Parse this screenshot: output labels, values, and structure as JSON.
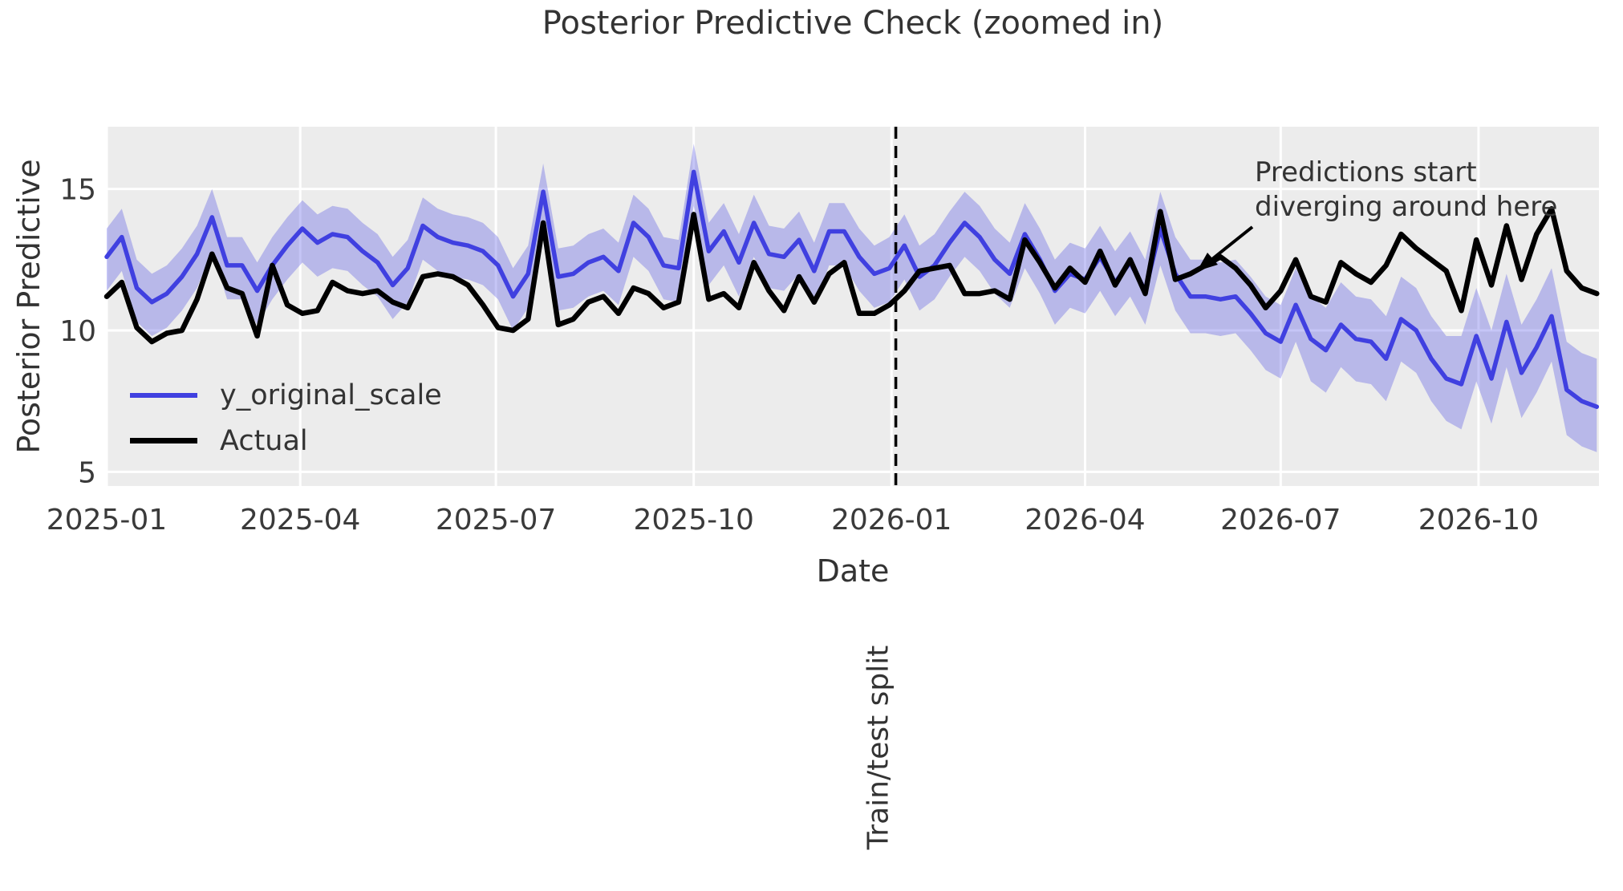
{
  "chart_data": {
    "type": "line",
    "title": "Posterior Predictive Check (zoomed in)",
    "xlabel": "Date",
    "ylabel": "Posterior Predictive",
    "grid": true,
    "plot_bg": "#ececec",
    "grid_color": "#ffffff",
    "text_color": "#3a3a3a",
    "line_color_pred": "#4040e0",
    "line_color_actual": "#000000",
    "band_color": "rgba(64,64,224,0.30)",
    "legend_position": "left-middle",
    "legend": [
      {
        "label": "y_original_scale",
        "color": "#4040e0"
      },
      {
        "label": "Actual",
        "color": "#000000"
      }
    ],
    "ylim": [
      4.5,
      17.2
    ],
    "xlim": [
      "2025-01-01",
      "2026-11-26"
    ],
    "y_ticks": [
      {
        "value": 15,
        "label": "15"
      },
      {
        "value": 10,
        "label": "10"
      },
      {
        "value": 5,
        "label": "5"
      }
    ],
    "x_ticks": [
      {
        "date": "2025-01-01",
        "label": "2025-01"
      },
      {
        "date": "2025-04-01",
        "label": "2025-04"
      },
      {
        "date": "2025-07-01",
        "label": "2025-07"
      },
      {
        "date": "2025-10-01",
        "label": "2025-10"
      },
      {
        "date": "2026-01-01",
        "label": "2026-01"
      },
      {
        "date": "2026-04-01",
        "label": "2026-04"
      },
      {
        "date": "2026-07-01",
        "label": "2026-07"
      },
      {
        "date": "2026-10-01",
        "label": "2026-10"
      }
    ],
    "split": {
      "date": "2026-01-03",
      "label": "Train/test split",
      "line_style": "dashed",
      "line_color": "#000000"
    },
    "annotation": {
      "line1": "Predictions start",
      "line2": "diverging around here",
      "arrow_color": "#000000"
    },
    "series": {
      "dates": [
        "2025-01-01",
        "2025-01-08",
        "2025-01-15",
        "2025-01-22",
        "2025-01-29",
        "2025-02-05",
        "2025-02-12",
        "2025-02-19",
        "2025-02-26",
        "2025-03-05",
        "2025-03-12",
        "2025-03-19",
        "2025-03-26",
        "2025-04-02",
        "2025-04-09",
        "2025-04-16",
        "2025-04-23",
        "2025-04-30",
        "2025-05-07",
        "2025-05-14",
        "2025-05-21",
        "2025-05-28",
        "2025-06-04",
        "2025-06-11",
        "2025-06-18",
        "2025-06-25",
        "2025-07-02",
        "2025-07-09",
        "2025-07-16",
        "2025-07-23",
        "2025-07-30",
        "2025-08-06",
        "2025-08-13",
        "2025-08-20",
        "2025-08-27",
        "2025-09-03",
        "2025-09-10",
        "2025-09-17",
        "2025-09-24",
        "2025-10-01",
        "2025-10-08",
        "2025-10-15",
        "2025-10-22",
        "2025-10-29",
        "2025-11-05",
        "2025-11-12",
        "2025-11-19",
        "2025-11-26",
        "2025-12-03",
        "2025-12-10",
        "2025-12-17",
        "2025-12-24",
        "2025-12-31",
        "2026-01-07",
        "2026-01-14",
        "2026-01-21",
        "2026-01-28",
        "2026-02-04",
        "2026-02-11",
        "2026-02-18",
        "2026-02-25",
        "2026-03-04",
        "2026-03-11",
        "2026-03-18",
        "2026-03-25",
        "2026-04-01",
        "2026-04-08",
        "2026-04-15",
        "2026-04-22",
        "2026-04-29",
        "2026-05-06",
        "2026-05-13",
        "2026-05-20",
        "2026-05-27",
        "2026-06-03",
        "2026-06-10",
        "2026-06-17",
        "2026-06-24",
        "2026-07-01",
        "2026-07-08",
        "2026-07-15",
        "2026-07-22",
        "2026-07-29",
        "2026-08-05",
        "2026-08-12",
        "2026-08-19",
        "2026-08-26",
        "2026-09-02",
        "2026-09-09",
        "2026-09-16",
        "2026-09-23",
        "2026-09-30",
        "2026-10-07",
        "2026-10-14",
        "2026-10-21",
        "2026-10-28",
        "2026-11-04",
        "2026-11-11",
        "2026-11-18",
        "2026-11-25"
      ],
      "y_original_scale": [
        12.6,
        13.3,
        11.5,
        11.0,
        11.3,
        11.9,
        12.7,
        14.0,
        12.3,
        12.3,
        11.4,
        12.3,
        13.0,
        13.6,
        13.1,
        13.4,
        13.3,
        12.8,
        12.4,
        11.6,
        12.2,
        13.7,
        13.3,
        13.1,
        13.0,
        12.8,
        12.3,
        11.2,
        12.0,
        14.9,
        11.9,
        12.0,
        12.4,
        12.6,
        12.1,
        13.8,
        13.3,
        12.3,
        12.2,
        15.6,
        12.8,
        13.5,
        12.4,
        13.8,
        12.7,
        12.6,
        13.2,
        12.1,
        13.5,
        13.5,
        12.6,
        12.0,
        12.2,
        13.0,
        11.9,
        12.3,
        13.1,
        13.8,
        13.3,
        12.5,
        12.0,
        13.4,
        12.5,
        11.4,
        12.0,
        11.8,
        12.6,
        11.7,
        12.4,
        11.4,
        13.6,
        12.0,
        11.2,
        11.2,
        11.1,
        11.2,
        10.6,
        9.9,
        9.6,
        10.9,
        9.7,
        9.3,
        10.2,
        9.7,
        9.6,
        9.0,
        10.4,
        10.0,
        9.0,
        8.3,
        8.1,
        9.8,
        8.3,
        10.3,
        8.5,
        9.4,
        10.5,
        7.9,
        7.5,
        7.3
      ],
      "actual": [
        11.2,
        11.7,
        10.1,
        9.6,
        9.9,
        10.0,
        11.1,
        12.7,
        11.5,
        11.3,
        9.8,
        12.3,
        10.9,
        10.6,
        10.7,
        11.7,
        11.4,
        11.3,
        11.4,
        11.0,
        10.8,
        11.9,
        12.0,
        11.9,
        11.6,
        10.9,
        10.1,
        10.0,
        10.4,
        13.8,
        10.2,
        10.4,
        11.0,
        11.2,
        10.6,
        11.5,
        11.3,
        10.8,
        11.0,
        14.1,
        11.1,
        11.3,
        10.8,
        12.4,
        11.4,
        10.7,
        11.9,
        11.0,
        12.0,
        12.4,
        10.6,
        10.6,
        10.9,
        11.4,
        12.1,
        12.2,
        12.3,
        11.3,
        11.3,
        11.4,
        11.1,
        13.2,
        12.4,
        11.5,
        12.2,
        11.7,
        12.8,
        11.6,
        12.5,
        11.3,
        14.2,
        11.8,
        12.0,
        12.3,
        12.6,
        12.2,
        11.6,
        10.8,
        11.4,
        12.5,
        11.2,
        11.0,
        12.4,
        12.0,
        11.7,
        12.3,
        13.4,
        12.9,
        12.5,
        12.1,
        10.7,
        13.2,
        11.6,
        13.7,
        11.8,
        13.4,
        14.3,
        12.1,
        11.5,
        11.3
      ],
      "hdi_upper": [
        13.6,
        14.3,
        12.5,
        12.0,
        12.3,
        12.9,
        13.7,
        15.0,
        13.3,
        13.3,
        12.4,
        13.3,
        14.0,
        14.6,
        14.1,
        14.4,
        14.3,
        13.8,
        13.4,
        12.6,
        13.2,
        14.7,
        14.3,
        14.1,
        14.0,
        13.8,
        13.3,
        12.2,
        13.0,
        15.9,
        12.9,
        13.0,
        13.4,
        13.6,
        13.1,
        14.8,
        14.3,
        13.3,
        13.2,
        16.6,
        13.8,
        14.5,
        13.4,
        14.8,
        13.7,
        13.6,
        14.2,
        13.1,
        14.5,
        14.5,
        13.6,
        13.0,
        13.3,
        14.1,
        13.0,
        13.4,
        14.2,
        14.9,
        14.4,
        13.6,
        13.1,
        14.5,
        13.6,
        12.5,
        13.1,
        12.9,
        13.7,
        12.8,
        13.5,
        12.5,
        14.9,
        13.3,
        12.5,
        12.5,
        12.4,
        12.5,
        11.9,
        11.2,
        10.9,
        12.2,
        11.2,
        10.8,
        11.7,
        11.2,
        11.1,
        10.5,
        11.9,
        11.5,
        10.5,
        9.8,
        9.8,
        11.5,
        10.0,
        12.0,
        10.2,
        11.1,
        12.2,
        9.6,
        9.2,
        9.0
      ],
      "hdi_lower": [
        11.4,
        12.1,
        10.3,
        9.8,
        10.1,
        10.7,
        11.5,
        12.8,
        11.1,
        11.1,
        10.2,
        11.1,
        11.8,
        12.4,
        11.9,
        12.2,
        12.1,
        11.6,
        11.2,
        10.4,
        11.0,
        12.5,
        12.1,
        11.9,
        11.8,
        11.6,
        11.1,
        10.0,
        10.8,
        13.7,
        10.7,
        10.8,
        11.2,
        11.4,
        10.9,
        12.6,
        12.1,
        11.1,
        11.0,
        14.4,
        11.6,
        12.3,
        11.2,
        12.6,
        11.5,
        11.4,
        12.0,
        10.9,
        12.3,
        12.3,
        11.4,
        10.8,
        11.0,
        11.8,
        10.7,
        11.1,
        11.9,
        12.6,
        12.1,
        11.3,
        10.8,
        12.2,
        11.3,
        10.2,
        10.8,
        10.6,
        11.4,
        10.5,
        11.2,
        10.2,
        12.3,
        10.7,
        9.9,
        9.9,
        9.8,
        9.9,
        9.3,
        8.6,
        8.3,
        9.6,
        8.2,
        7.8,
        8.7,
        8.2,
        8.1,
        7.5,
        8.9,
        8.5,
        7.5,
        6.8,
        6.5,
        8.2,
        6.7,
        8.7,
        6.9,
        7.8,
        8.9,
        6.3,
        5.9,
        5.7
      ]
    }
  }
}
